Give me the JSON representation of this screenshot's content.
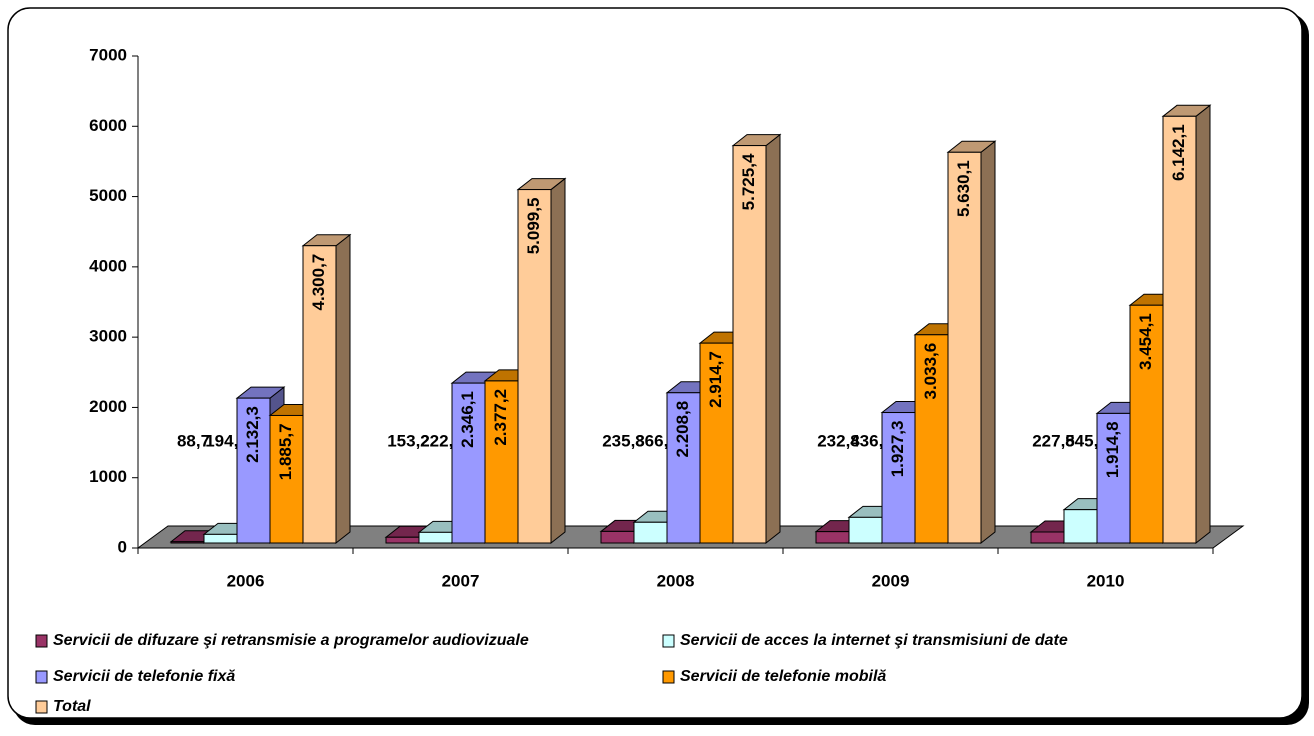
{
  "chart_data": {
    "type": "bar3d",
    "categories": [
      "2006",
      "2007",
      "2008",
      "2009",
      "2010"
    ],
    "series": [
      {
        "name": "Servicii de difuzare şi retransmisie a programelor audiovizuale",
        "color": "#993366",
        "values": [
          88.7,
          153.2,
          235.8,
          232.8,
          227.8
        ],
        "value_labels": [
          "88,7",
          "153,2",
          "235,8",
          "232,8",
          "227,8"
        ]
      },
      {
        "name": "Servicii de acces la internet şi transmisiuni de date",
        "color": "#ccffff",
        "values": [
          194.1,
          222.9,
          366.1,
          436.4,
          545.4
        ],
        "value_labels": [
          "194,1",
          "222,9",
          "366,1",
          "436,4",
          "545,4"
        ]
      },
      {
        "name": "Servicii de telefonie fixă",
        "color": "#9999ff",
        "values": [
          2132.3,
          2346.1,
          2208.8,
          1927.3,
          1914.8
        ],
        "value_labels": [
          "2.132,3",
          "2.346,1",
          "2.208,8",
          "1.927,3",
          "1.914,8"
        ]
      },
      {
        "name": "Servicii de telefonie mobilă",
        "color": "#ff9900",
        "values": [
          1885.7,
          2377.2,
          2914.7,
          3033.6,
          3454.1
        ],
        "value_labels": [
          "1.885,7",
          "2.377,2",
          "2.914,7",
          "3.033,6",
          "3.454,1"
        ]
      },
      {
        "name": "Total",
        "color": "#ffcc99",
        "values": [
          4300.7,
          5099.5,
          5725.4,
          5630.1,
          6142.1
        ],
        "value_labels": [
          "4.300,7",
          "5.099,5",
          "5.725,4",
          "5.630,1",
          "6.142,1"
        ]
      }
    ],
    "ylim": [
      0,
      7000
    ],
    "yticks": [
      0,
      1000,
      2000,
      3000,
      4000,
      5000,
      6000,
      7000
    ]
  }
}
